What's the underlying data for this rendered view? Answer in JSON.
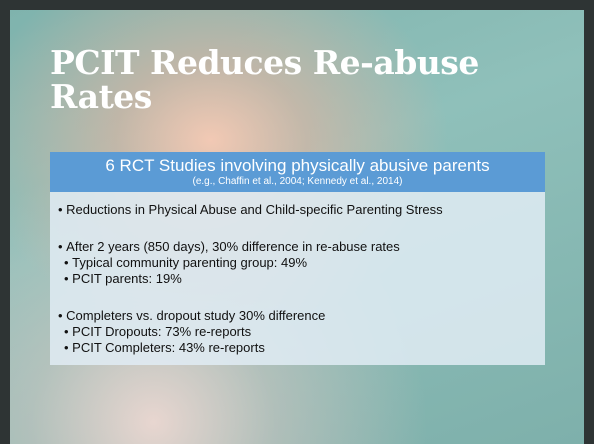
{
  "title": "PCIT Reduces Re-abuse Rates",
  "box": {
    "heading": "6 RCT Studies involving physically abusive parents",
    "citation": "(e.g., Chaffin et al., 2004; Kennedy et al., 2014)",
    "bullets": [
      {
        "text": "Reductions in Physical Abuse and Child-specific Parenting Stress",
        "sub": []
      },
      {
        "text": "After 2 years (850 days), 30% difference in re-abuse rates",
        "sub": [
          "Typical community parenting group: 49%",
          "PCIT parents: 19%"
        ]
      },
      {
        "text": "Completers vs. dropout study 30% difference",
        "sub": [
          "PCIT Dropouts: 73% re-reports",
          "PCIT Completers: 43% re-reports"
        ]
      }
    ]
  }
}
